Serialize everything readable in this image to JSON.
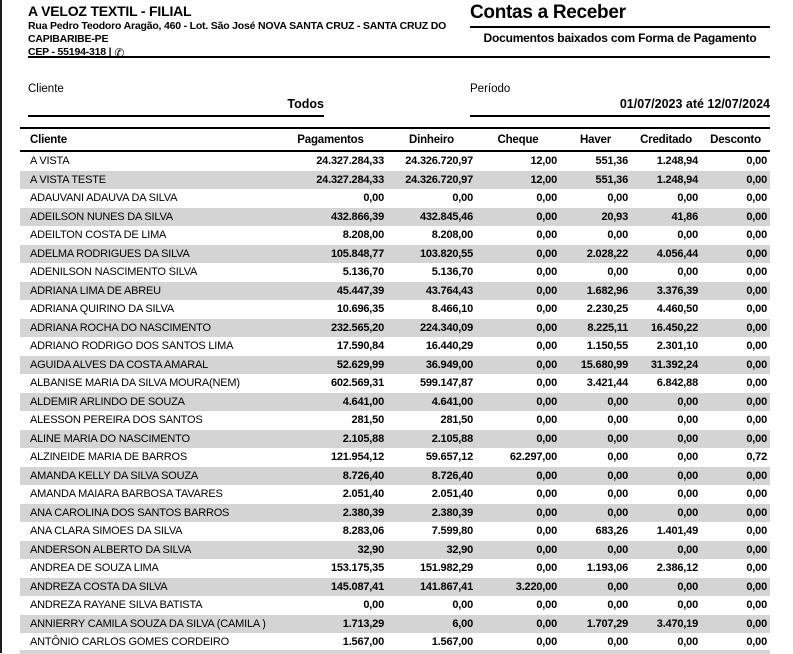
{
  "company": {
    "name": "A VELOZ TEXTIL - FILIAL",
    "address": "Rua Pedro Teodoro Aragão, 460 - Lot. São José NOVA SANTA CRUZ - SANTA CRUZ DO CAPIBARIBE-PE",
    "cep_line": "CEP - 55194-318 |",
    "phone_icon": "✆"
  },
  "report": {
    "title": "Contas a Receber",
    "subtitle": "Documentos baixados com Forma de Pagamento"
  },
  "filters": {
    "cliente": {
      "label": "Cliente",
      "value": "Todos"
    },
    "periodo": {
      "label": "Período",
      "value": "01/07/2023 até 12/07/2024"
    }
  },
  "table": {
    "columns": [
      "Cliente",
      "Pagamentos",
      "Dinheiro",
      "Cheque",
      "Haver",
      "Creditado",
      "Desconto"
    ],
    "rows": [
      [
        "A VISTA",
        "24.327.284,33",
        "24.326.720,97",
        "12,00",
        "551,36",
        "1.248,94",
        "0,00"
      ],
      [
        "A VISTA TESTE",
        "24.327.284,33",
        "24.326.720,97",
        "12,00",
        "551,36",
        "1.248,94",
        "0,00"
      ],
      [
        "ADAUVANI ADAUVA DA SILVA",
        "0,00",
        "0,00",
        "0,00",
        "0,00",
        "0,00",
        "0,00"
      ],
      [
        "ADEILSON NUNES DA SILVA",
        "432.866,39",
        "432.845,46",
        "0,00",
        "20,93",
        "41,86",
        "0,00"
      ],
      [
        "ADEILTON COSTA DE LIMA",
        "8.208,00",
        "8.208,00",
        "0,00",
        "0,00",
        "0,00",
        "0,00"
      ],
      [
        "ADELMA RODRIGUES DA SILVA",
        "105.848,77",
        "103.820,55",
        "0,00",
        "2.028,22",
        "4.056,44",
        "0,00"
      ],
      [
        "ADENILSON NASCIMENTO SILVA",
        "5.136,70",
        "5.136,70",
        "0,00",
        "0,00",
        "0,00",
        "0,00"
      ],
      [
        "ADRIANA LIMA DE ABREU",
        "45.447,39",
        "43.764,43",
        "0,00",
        "1.682,96",
        "3.376,39",
        "0,00"
      ],
      [
        "ADRIANA QUIRINO DA SILVA",
        "10.696,35",
        "8.466,10",
        "0,00",
        "2.230,25",
        "4.460,50",
        "0,00"
      ],
      [
        "ADRIANA ROCHA DO NASCIMENTO",
        "232.565,20",
        "224.340,09",
        "0,00",
        "8.225,11",
        "16.450,22",
        "0,00"
      ],
      [
        "ADRIANO RODRIGO DOS SANTOS LIMA",
        "17.590,84",
        "16.440,29",
        "0,00",
        "1.150,55",
        "2.301,10",
        "0,00"
      ],
      [
        "AGUIDA ALVES DA COSTA AMARAL",
        "52.629,99",
        "36.949,00",
        "0,00",
        "15.680,99",
        "31.392,24",
        "0,00"
      ],
      [
        "ALBANISE MARIA DA SILVA MOURA(NEM)",
        "602.569,31",
        "599.147,87",
        "0,00",
        "3.421,44",
        "6.842,88",
        "0,00"
      ],
      [
        "ALDEMIR ARLINDO DE SOUZA",
        "4.641,00",
        "4.641,00",
        "0,00",
        "0,00",
        "0,00",
        "0,00"
      ],
      [
        "ALESSON PEREIRA DOS SANTOS",
        "281,50",
        "281,50",
        "0,00",
        "0,00",
        "0,00",
        "0,00"
      ],
      [
        "ALINE MARIA DO NASCIMENTO",
        "2.105,88",
        "2.105,88",
        "0,00",
        "0,00",
        "0,00",
        "0,00"
      ],
      [
        "ALZINEIDE MARIA DE BARROS",
        "121.954,12",
        "59.657,12",
        "62.297,00",
        "0,00",
        "0,00",
        "0,72"
      ],
      [
        "AMANDA KELLY DA SILVA SOUZA",
        "8.726,40",
        "8.726,40",
        "0,00",
        "0,00",
        "0,00",
        "0,00"
      ],
      [
        "AMANDA MAIARA BARBOSA TAVARES",
        "2.051,40",
        "2.051,40",
        "0,00",
        "0,00",
        "0,00",
        "0,00"
      ],
      [
        "ANA CAROLINA DOS SANTOS BARROS",
        "2.380,39",
        "2.380,39",
        "0,00",
        "0,00",
        "0,00",
        "0,00"
      ],
      [
        "ANA CLARA SIMOES DA SILVA",
        "8.283,06",
        "7.599,80",
        "0,00",
        "683,26",
        "1.401,49",
        "0,00"
      ],
      [
        "ANDERSON ALBERTO DA SILVA",
        "32,90",
        "32,90",
        "0,00",
        "0,00",
        "0,00",
        "0,00"
      ],
      [
        "ANDREA DE SOUZA LIMA",
        "153.175,35",
        "151.982,29",
        "0,00",
        "1.193,06",
        "2.386,12",
        "0,00"
      ],
      [
        "ANDREZA COSTA DA SILVA",
        "145.087,41",
        "141.867,41",
        "3.220,00",
        "0,00",
        "0,00",
        "0,00"
      ],
      [
        "ANDREZA RAYANE SILVA BATISTA",
        "0,00",
        "0,00",
        "0,00",
        "0,00",
        "0,00",
        "0,00"
      ],
      [
        "ANNIERRY CAMILA SOUZA DA SILVA (CAMILA )",
        "1.713,29",
        "6,00",
        "0,00",
        "1.707,29",
        "3.470,19",
        "0,00"
      ],
      [
        "ANTÔNIO CARLOS GOMES CORDEIRO",
        "1.567,00",
        "1.567,00",
        "0,00",
        "0,00",
        "0,00",
        "0,00"
      ]
    ]
  },
  "colors": {
    "stripe": "#d4d4d4",
    "line": "#000000"
  }
}
